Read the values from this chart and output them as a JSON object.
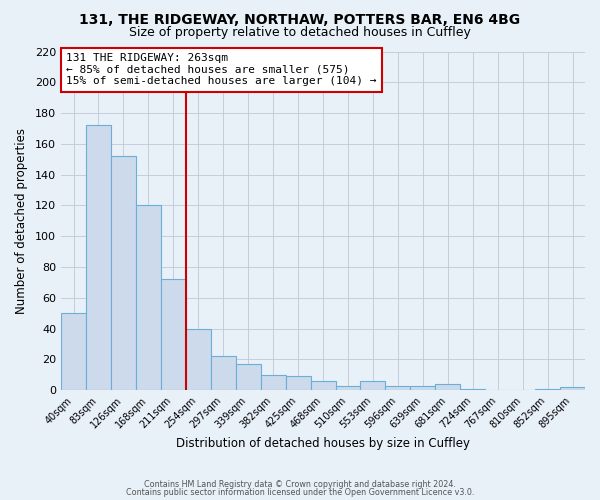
{
  "title": "131, THE RIDGEWAY, NORTHAW, POTTERS BAR, EN6 4BG",
  "subtitle": "Size of property relative to detached houses in Cuffley",
  "xlabel": "Distribution of detached houses by size in Cuffley",
  "ylabel": "Number of detached properties",
  "footer_line1": "Contains HM Land Registry data © Crown copyright and database right 2024.",
  "footer_line2": "Contains public sector information licensed under the Open Government Licence v3.0.",
  "categories": [
    "40sqm",
    "83sqm",
    "126sqm",
    "168sqm",
    "211sqm",
    "254sqm",
    "297sqm",
    "339sqm",
    "382sqm",
    "425sqm",
    "468sqm",
    "510sqm",
    "553sqm",
    "596sqm",
    "639sqm",
    "681sqm",
    "724sqm",
    "767sqm",
    "810sqm",
    "852sqm",
    "895sqm"
  ],
  "values": [
    50,
    172,
    152,
    120,
    72,
    40,
    22,
    17,
    10,
    9,
    6,
    3,
    6,
    3,
    3,
    4,
    1,
    0,
    0,
    1,
    2
  ],
  "bar_color": "#ccdaec",
  "bar_edge_color": "#6baed6",
  "vline_x_index": 4.5,
  "vline_color": "#cc0000",
  "annotation_line1": "131 THE RIDGEWAY: 263sqm",
  "annotation_line2": "← 85% of detached houses are smaller (575)",
  "annotation_line3": "15% of semi-detached houses are larger (104) →",
  "annotation_box_edge_color": "#cc0000",
  "annotation_box_fill": "#ffffff",
  "ylim": [
    0,
    220
  ],
  "yticks": [
    0,
    20,
    40,
    60,
    80,
    100,
    120,
    140,
    160,
    180,
    200,
    220
  ],
  "grid_color": "#c0c8d8",
  "background_color": "#e8f0f8",
  "plot_bg_color": "#e8f0f8",
  "title_fontsize": 10,
  "subtitle_fontsize": 9
}
